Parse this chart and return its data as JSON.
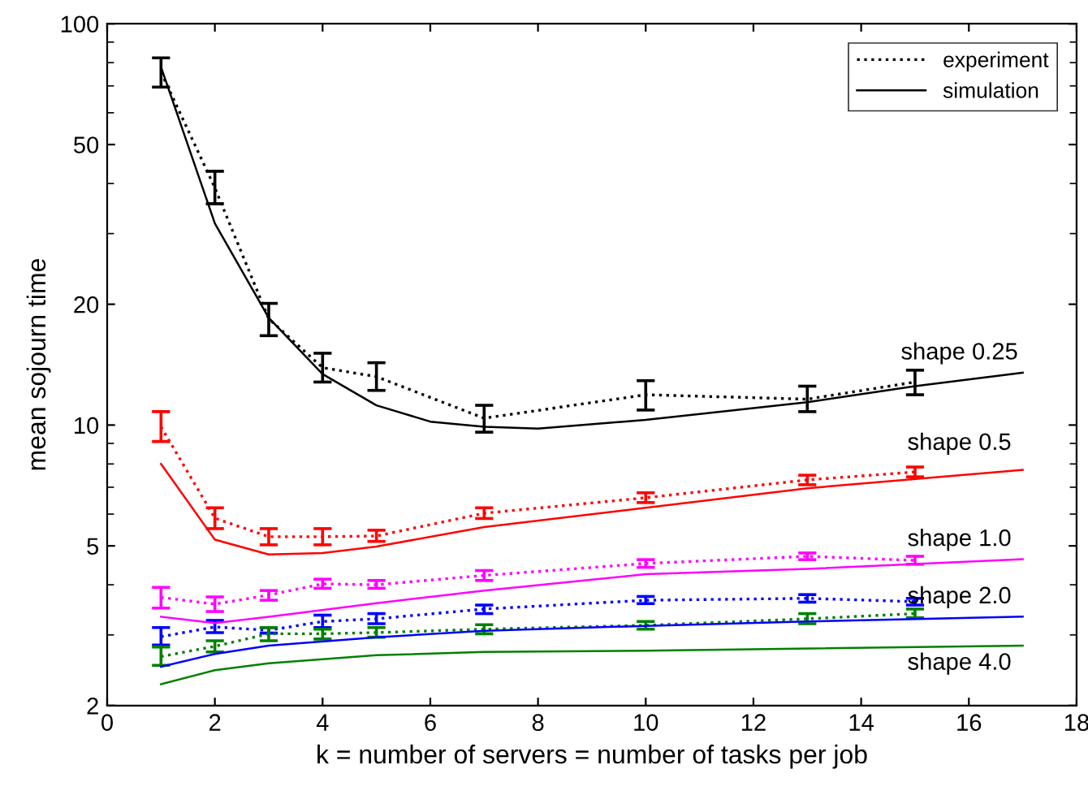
{
  "chart_data": {
    "type": "line",
    "xlabel": "k = number of servers = number of tasks per job",
    "ylabel": "mean sojourn time",
    "xlim": [
      0,
      18
    ],
    "xticks": [
      0,
      2,
      4,
      6,
      8,
      10,
      12,
      14,
      16,
      18
    ],
    "ylim": [
      2,
      100
    ],
    "yticks": [
      2,
      5,
      10,
      20,
      50,
      100
    ],
    "log": "y",
    "grid": false,
    "legend": "top right",
    "marker": "none",
    "series": [
      {
        "name": "experiment",
        "color": "#000000",
        "line_style": "dotted",
        "x": [
          1,
          2,
          3,
          4,
          5,
          7,
          10,
          13,
          15
        ],
        "values": [
          75.7,
          39.0,
          18.4,
          13.9,
          13.2,
          10.4,
          11.9,
          11.6,
          12.8
        ],
        "errors": [
          [
            69.5,
            82.2
          ],
          [
            35.6,
            42.9
          ],
          [
            16.7,
            20.1
          ],
          [
            12.8,
            15.1
          ],
          [
            12.2,
            14.3
          ],
          [
            9.6,
            11.2
          ],
          [
            10.9,
            12.9
          ],
          [
            10.8,
            12.5
          ],
          [
            11.9,
            13.7
          ]
        ]
      },
      {
        "name": "simulation",
        "color": "#000000",
        "line_style": "solid",
        "x": [
          1,
          2,
          3,
          4,
          5,
          6,
          7,
          8,
          10,
          13,
          15,
          17
        ],
        "values": [
          78,
          31.8,
          18.5,
          13.4,
          11.2,
          10.2,
          9.9,
          9.8,
          10.3,
          11.4,
          12.5,
          13.5
        ]
      },
      {
        "color": "#ff0000",
        "line_style": "dotted",
        "x": [
          1,
          2,
          3,
          4,
          5,
          7,
          10,
          13,
          15
        ],
        "values": [
          9.9,
          5.86,
          5.27,
          5.27,
          5.29,
          6.03,
          6.59,
          7.3,
          7.64
        ],
        "errors": [
          [
            9.1,
            10.8
          ],
          [
            5.52,
            6.22
          ],
          [
            5.03,
            5.52
          ],
          [
            5.03,
            5.52
          ],
          [
            5.13,
            5.47
          ],
          [
            5.85,
            6.22
          ],
          [
            6.41,
            6.78
          ],
          [
            7.1,
            7.5
          ],
          [
            7.43,
            7.86
          ]
        ]
      },
      {
        "color": "#ff0000",
        "line_style": "solid",
        "x": [
          1,
          2,
          3,
          4,
          5,
          7,
          10,
          13,
          17
        ],
        "values": [
          8.0,
          5.18,
          4.76,
          4.8,
          4.98,
          5.57,
          6.22,
          6.96,
          7.73
        ]
      },
      {
        "color": "#ff00ff",
        "line_style": "dotted",
        "x": [
          1,
          2,
          3,
          4,
          5,
          7,
          10,
          13,
          15
        ],
        "values": [
          3.72,
          3.58,
          3.77,
          4.02,
          4.0,
          4.22,
          4.52,
          4.71,
          4.6
        ],
        "errors": [
          [
            3.5,
            3.94
          ],
          [
            3.43,
            3.73
          ],
          [
            3.66,
            3.87
          ],
          [
            3.92,
            4.13
          ],
          [
            3.92,
            4.1
          ],
          [
            4.1,
            4.34
          ],
          [
            4.42,
            4.62
          ],
          [
            4.62,
            4.8
          ],
          [
            4.5,
            4.71
          ]
        ]
      },
      {
        "color": "#ff00ff",
        "line_style": "solid",
        "x": [
          1,
          2,
          3,
          5,
          7,
          10,
          13,
          17
        ],
        "values": [
          3.33,
          3.21,
          3.33,
          3.6,
          3.87,
          4.25,
          4.38,
          4.63
        ]
      },
      {
        "color": "#0000ff",
        "line_style": "dotted",
        "x": [
          1,
          2,
          3,
          4,
          5,
          7,
          10,
          13,
          15
        ],
        "values": [
          2.97,
          3.14,
          3.08,
          3.24,
          3.29,
          3.48,
          3.66,
          3.7,
          3.63
        ],
        "errors": [
          [
            2.83,
            3.13
          ],
          [
            3.04,
            3.26
          ],
          [
            3.03,
            3.13
          ],
          [
            3.13,
            3.36
          ],
          [
            3.2,
            3.39
          ],
          [
            3.39,
            3.56
          ],
          [
            3.59,
            3.74
          ],
          [
            3.62,
            3.78
          ],
          [
            3.56,
            3.7
          ]
        ]
      },
      {
        "color": "#0000ff",
        "line_style": "solid",
        "x": [
          1,
          2,
          3,
          5,
          7,
          10,
          13,
          17
        ],
        "values": [
          2.5,
          2.69,
          2.82,
          2.96,
          3.07,
          3.16,
          3.24,
          3.33
        ]
      },
      {
        "color": "#008000",
        "line_style": "dotted",
        "x": [
          1,
          2,
          3,
          4,
          5,
          7,
          10,
          13,
          15
        ],
        "values": [
          2.65,
          2.81,
          3.02,
          3.02,
          3.04,
          3.1,
          3.17,
          3.29,
          3.39
        ],
        "errors": [
          [
            2.52,
            2.8
          ],
          [
            2.72,
            2.9
          ],
          [
            2.9,
            3.13
          ],
          [
            2.93,
            3.1
          ],
          [
            2.96,
            3.13
          ],
          [
            3.02,
            3.18
          ],
          [
            3.1,
            3.24
          ],
          [
            3.2,
            3.39
          ],
          [
            3.31,
            3.48
          ]
        ]
      },
      {
        "color": "#008000",
        "line_style": "solid",
        "x": [
          1,
          2,
          3,
          5,
          7,
          10,
          17
        ],
        "values": [
          2.26,
          2.45,
          2.55,
          2.67,
          2.72,
          2.74,
          2.82
        ]
      }
    ],
    "annotations": [
      "shape 0.25",
      "shape 0.5",
      "shape 1.0",
      "shape 2.0",
      "shape 4.0"
    ]
  }
}
